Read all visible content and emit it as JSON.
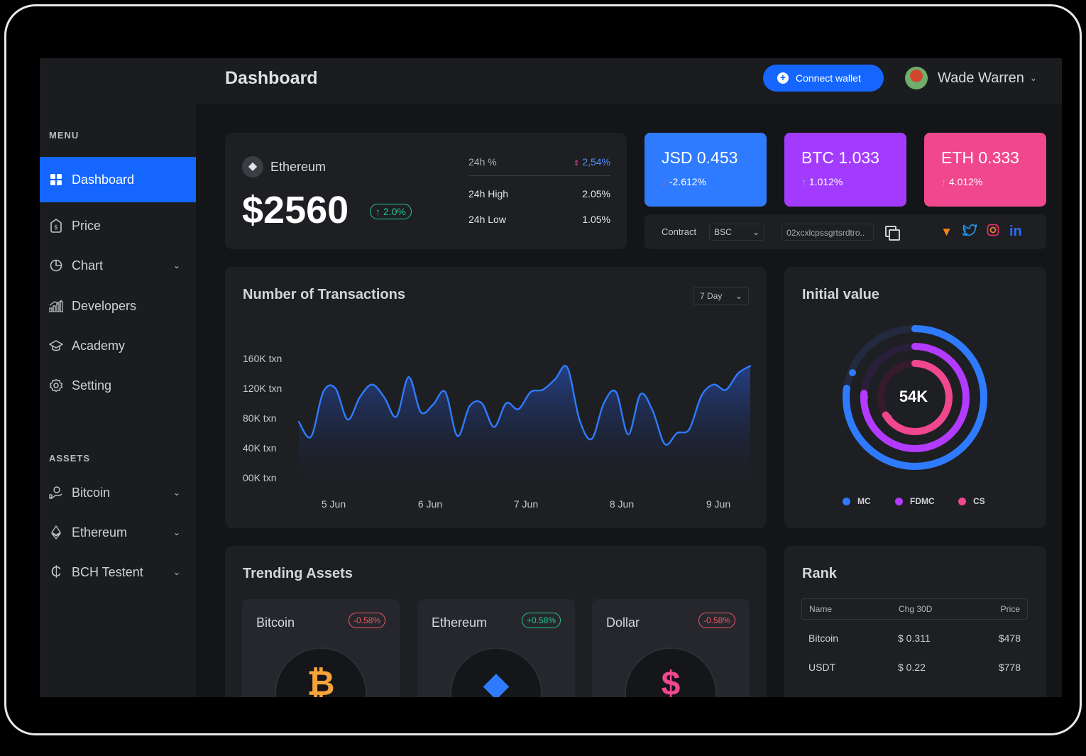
{
  "header": {
    "title": "Dashboard",
    "connect_label": "Connect wallet",
    "user_name": "Wade Warren"
  },
  "sidebar": {
    "menu_heading": "MENU",
    "menu_items": [
      {
        "label": "Dashboard",
        "icon": "grid-icon",
        "active": true
      },
      {
        "label": "Price",
        "icon": "price-tag-icon"
      },
      {
        "label": "Chart",
        "icon": "pie-chart-icon",
        "has_submenu": true
      },
      {
        "label": "Developers",
        "icon": "bar-chart-icon"
      },
      {
        "label": "Academy",
        "icon": "graduation-cap-icon"
      },
      {
        "label": "Setting",
        "icon": "gear-icon"
      }
    ],
    "assets_heading": "ASSETS",
    "asset_items": [
      {
        "label": "Bitcoin",
        "icon": "coin-hand-icon"
      },
      {
        "label": "Ethereum",
        "icon": "ethereum-icon"
      },
      {
        "label": "BCH Testent",
        "icon": "cedi-icon"
      }
    ]
  },
  "eth_card": {
    "name": "Ethereum",
    "price": "$2560",
    "change": "↑ 2.0%",
    "stats": [
      {
        "label": "24h %",
        "value": "2,54%"
      },
      {
        "label": "24h High",
        "value": "2.05%"
      },
      {
        "label": "24h Low",
        "value": "1.05%"
      }
    ]
  },
  "tiles": [
    {
      "title": "JSD 0.453",
      "sub": "-2.612%",
      "color": "#2f7bff"
    },
    {
      "title": "BTC 1.033",
      "sub": "1.012%",
      "color": "#a33bff"
    },
    {
      "title": "ETH 0.333",
      "sub": "4.012%",
      "color": "#f0478e"
    }
  ],
  "contract": {
    "label": "Contract",
    "network": "BSC",
    "address": "02xcxlcpssgrtsrdtro.."
  },
  "transactions": {
    "title": "Number of Transactions",
    "range_label": "7 Day"
  },
  "chart_data": {
    "type": "area",
    "title": "Number of Transactions",
    "y_ticks": [
      "160K txn",
      "120K txn",
      "80K txn",
      "40K txn",
      "00K txn"
    ],
    "x_ticks": [
      "5 Jun",
      "6 Jun",
      "7 Jun",
      "8 Jun",
      "9 Jun"
    ],
    "ylim": [
      0,
      160
    ],
    "values": [
      75,
      55,
      115,
      120,
      78,
      108,
      125,
      108,
      82,
      135,
      88,
      98,
      115,
      56,
      96,
      100,
      68,
      100,
      92,
      115,
      118,
      132,
      148,
      78,
      52,
      100,
      115,
      58,
      112,
      90,
      45,
      60,
      65,
      110,
      125,
      118,
      140,
      150
    ]
  },
  "initial_value": {
    "title": "Initial value",
    "center": "54K",
    "legend": [
      {
        "label": "MC",
        "color": "#2f7bff"
      },
      {
        "label": "FDMC",
        "color": "#b33bff"
      },
      {
        "label": "CS",
        "color": "#f0478e"
      }
    ]
  },
  "trending": {
    "title": "Trending Assets",
    "items": [
      {
        "name": "Bitcoin",
        "badge": "-0.58%",
        "badge_color": "#f05a6a",
        "glyph": "₿",
        "glyph_color": "#f6a33a"
      },
      {
        "name": "Ethereum",
        "badge": "+0.58%",
        "badge_color": "#22c98a",
        "glyph": "◆",
        "glyph_color": "#2f7bff"
      },
      {
        "name": "Dollar",
        "badge": "-0.58%",
        "badge_color": "#f05a6a",
        "glyph": "$",
        "glyph_color": "#f0478e"
      }
    ]
  },
  "rank": {
    "title": "Rank",
    "columns": [
      "Name",
      "Chg 30D",
      "Price"
    ],
    "rows": [
      [
        "Bitcoin",
        "$ 0.311",
        "$478"
      ],
      [
        "USDT",
        "$ 0.22",
        "$778"
      ]
    ]
  }
}
